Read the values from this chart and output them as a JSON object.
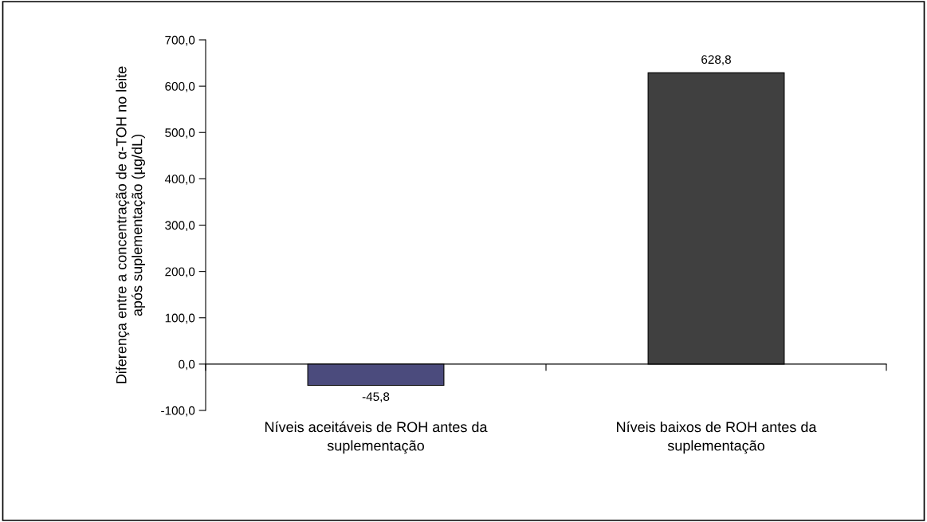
{
  "chart_data": {
    "type": "bar",
    "ylabel": "Diferença entre a concentração de α-TOH no leite\napós suplementação (µg/dL)",
    "categories": [
      "Níveis aceitáveis de ROH antes da\nsuplementação",
      "Níveis baixos de ROH antes da\nsuplementação"
    ],
    "values": [
      -45.8,
      628.8
    ],
    "colors": [
      "#4b4b7d",
      "#404040"
    ],
    "value_labels": [
      "-45,8",
      "628,8"
    ],
    "ylim": [
      -100,
      700
    ],
    "yticks": [
      {
        "value": -100,
        "label": "-100,0"
      },
      {
        "value": 0,
        "label": "0,0"
      },
      {
        "value": 100,
        "label": "100,0"
      },
      {
        "value": 200,
        "label": "200,0"
      },
      {
        "value": 300,
        "label": "300,0"
      },
      {
        "value": 400,
        "label": "400,0"
      },
      {
        "value": 500,
        "label": "500,0"
      },
      {
        "value": 600,
        "label": "600,0"
      },
      {
        "value": 700,
        "label": "700,0"
      }
    ],
    "relative": false
  }
}
